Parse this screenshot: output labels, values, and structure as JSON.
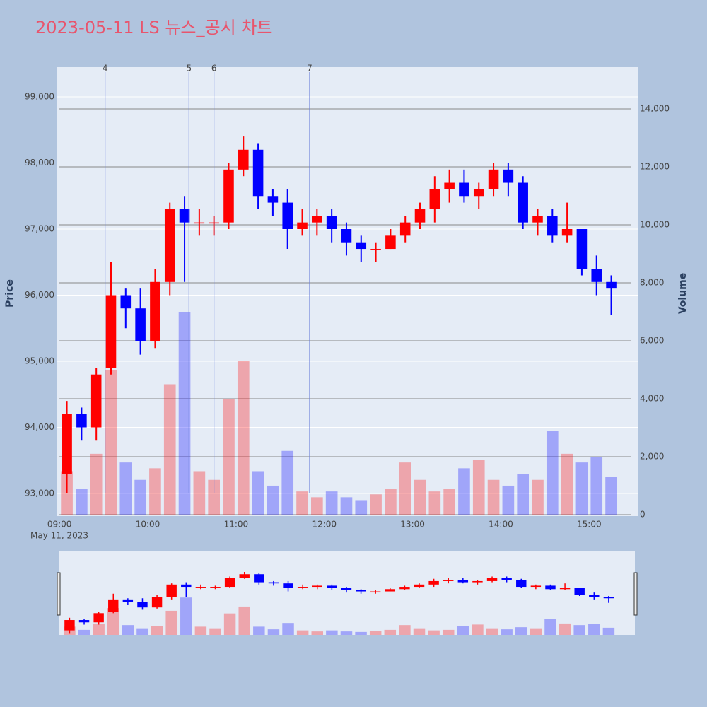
{
  "chart_data": {
    "type": "candlestick",
    "title": "2023-05-11 LS 뉴스_공시 차트",
    "ylabel": "Price",
    "y2label": "Volume",
    "x_date_label": "May 11, 2023",
    "x": [
      "09:00",
      "09:10",
      "09:20",
      "09:30",
      "09:40",
      "09:50",
      "10:00",
      "10:10",
      "10:20",
      "10:30",
      "10:40",
      "10:50",
      "11:00",
      "11:10",
      "11:20",
      "11:30",
      "11:40",
      "11:50",
      "12:00",
      "12:10",
      "12:20",
      "12:30",
      "12:40",
      "12:50",
      "13:00",
      "13:10",
      "13:20",
      "13:30",
      "13:40",
      "13:50",
      "14:00",
      "14:10",
      "14:20",
      "14:30",
      "14:40",
      "14:50",
      "15:00",
      "15:10"
    ],
    "open": [
      93300,
      94200,
      94000,
      94900,
      96000,
      95800,
      95300,
      96200,
      97300,
      97100,
      97100,
      97100,
      97900,
      98200,
      97500,
      97400,
      97000,
      97100,
      97200,
      97000,
      96800,
      96700,
      96700,
      96900,
      97100,
      97300,
      97600,
      97700,
      97500,
      97600,
      97900,
      97700,
      97100,
      97200,
      96900,
      97000,
      96400,
      96200
    ],
    "high": [
      94400,
      94300,
      94900,
      96500,
      96100,
      96100,
      96400,
      97400,
      97500,
      97300,
      97200,
      98000,
      98400,
      98300,
      97600,
      97600,
      97300,
      97300,
      97300,
      97100,
      96900,
      96800,
      97000,
      97200,
      97400,
      97800,
      97900,
      97900,
      97700,
      98000,
      98000,
      97800,
      97300,
      97300,
      97400,
      97000,
      96600,
      96300
    ],
    "low": [
      93000,
      93800,
      93800,
      94800,
      95500,
      95100,
      95200,
      96000,
      96200,
      96900,
      96900,
      97000,
      97800,
      97300,
      97200,
      96700,
      96900,
      96900,
      96800,
      96600,
      96500,
      96500,
      96700,
      96800,
      97000,
      97100,
      97400,
      97400,
      97300,
      97500,
      97500,
      97000,
      96900,
      96800,
      96800,
      96300,
      96000,
      95700
    ],
    "close": [
      94200,
      94000,
      94800,
      96000,
      95800,
      95300,
      96200,
      97300,
      97100,
      97100,
      97100,
      97900,
      98200,
      97500,
      97400,
      97000,
      97100,
      97200,
      97000,
      96800,
      96700,
      96700,
      96900,
      97100,
      97300,
      97600,
      97700,
      97500,
      97600,
      97900,
      97700,
      97100,
      97200,
      96900,
      97000,
      96400,
      96200,
      96100
    ],
    "volume": [
      1500,
      900,
      2100,
      5000,
      1800,
      1200,
      1600,
      4500,
      7000,
      1500,
      1200,
      4000,
      5300,
      1500,
      1000,
      2200,
      800,
      600,
      800,
      600,
      500,
      700,
      900,
      1800,
      1200,
      800,
      900,
      1600,
      1900,
      1200,
      1000,
      1400,
      1200,
      2900,
      2100,
      1800,
      2000,
      1300
    ],
    "increasing_color": "#ff0000",
    "decreasing_color": "#0000ff",
    "annotations": [
      {
        "text": "4",
        "x": "09:31"
      },
      {
        "text": "5",
        "x": "10:28"
      },
      {
        "text": "6",
        "x": "10:45"
      },
      {
        "text": "7",
        "x": "11:50"
      }
    ],
    "xlim": [
      "08:58",
      "15:33"
    ],
    "xticks": [
      "09:00",
      "10:00",
      "11:00",
      "12:00",
      "13:00",
      "14:00",
      "15:00"
    ],
    "ylim": [
      92658,
      99449
    ],
    "yticks": [
      {
        "value": 93000,
        "label": "93,000"
      },
      {
        "value": 94000,
        "label": "94,000"
      },
      {
        "value": 95000,
        "label": "95,000"
      },
      {
        "value": 96000,
        "label": "96,000"
      },
      {
        "value": 97000,
        "label": "97,000"
      },
      {
        "value": 98000,
        "label": "98,000"
      },
      {
        "value": 99000,
        "label": "99,000"
      }
    ],
    "y2lim": [
      -50,
      15440
    ],
    "y2ticks": [
      0,
      {
        "value": 2000,
        "label": "2,000"
      },
      {
        "value": 4000,
        "label": "4,000"
      },
      {
        "value": 6000,
        "label": "6,000"
      },
      {
        "value": 8000,
        "label": "8,000"
      },
      {
        "value": 10000,
        "label": "10,000"
      },
      {
        "value": 12000,
        "label": "12,000"
      },
      {
        "value": 14000,
        "label": "14,000"
      }
    ],
    "grid": true,
    "rangeslider": true
  }
}
